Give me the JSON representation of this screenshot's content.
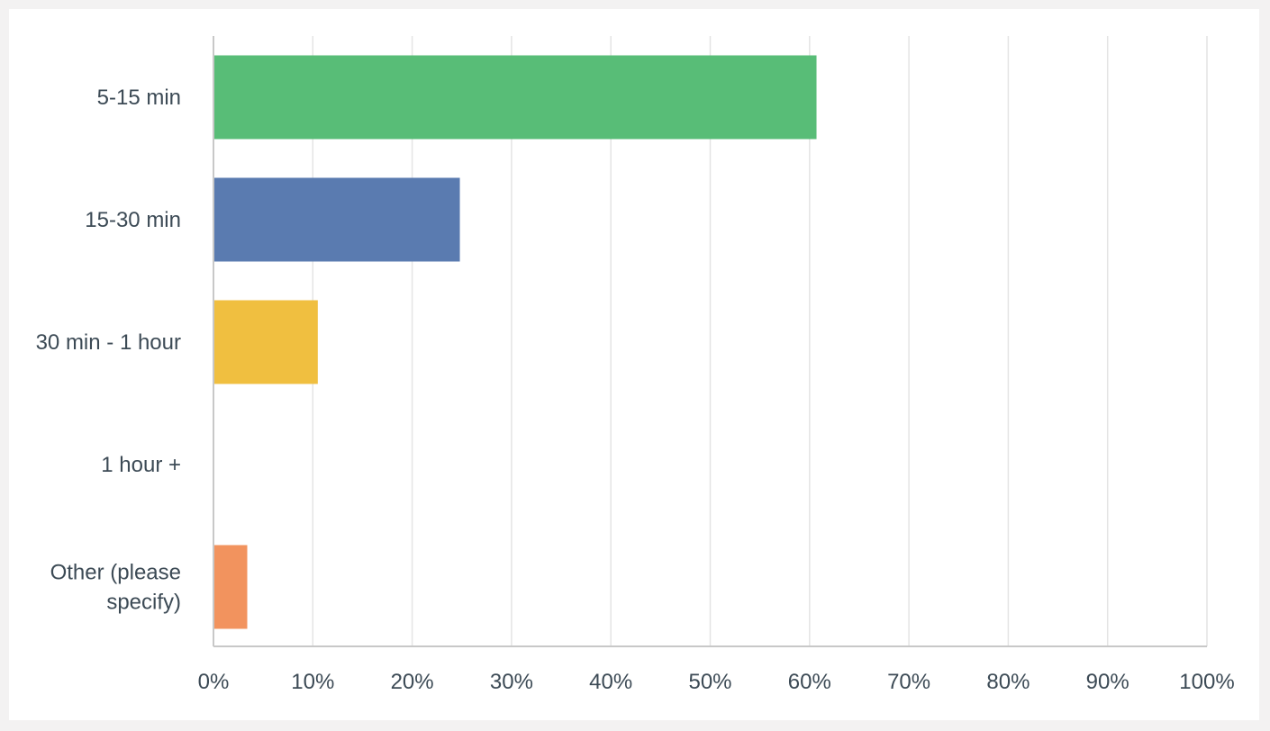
{
  "chart_data": {
    "type": "bar",
    "orientation": "horizontal",
    "title": "",
    "xlabel": "",
    "ylabel": "",
    "categories": [
      [
        "5-15 min"
      ],
      [
        "15-30 min"
      ],
      [
        "30 min - 1 hour"
      ],
      [
        "1 hour +"
      ],
      [
        "Other (please",
        "specify)"
      ]
    ],
    "values": [
      60.7,
      24.8,
      10.5,
      0,
      3.4
    ],
    "colors": [
      "#58bd77",
      "#5a7bb0",
      "#f0bf40",
      "#f5f5f5",
      "#f2935e"
    ],
    "xlim": [
      0,
      100
    ],
    "xticks": [
      0,
      10,
      20,
      30,
      40,
      50,
      60,
      70,
      80,
      90,
      100
    ],
    "tick_labels": [
      "0%",
      "10%",
      "20%",
      "30%",
      "40%",
      "50%",
      "60%",
      "70%",
      "80%",
      "90%",
      "100%"
    ],
    "grid": true,
    "legend": "none"
  }
}
